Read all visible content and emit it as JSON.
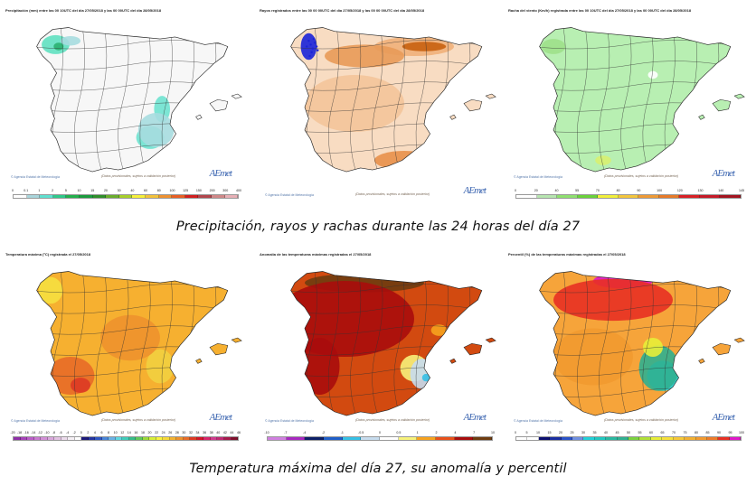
{
  "figure": {
    "source_brand": "AEMET",
    "captions": {
      "row1": "Precipitación, rayos y rachas durante las 24 horas del día 27",
      "row2": "Temperatura máxima del día 27, su anomalía y percentil"
    },
    "common": {
      "credit": "© Agencia Estatal de Meteorología",
      "note": "(Datos provisionales, sujetos a validación posterior)",
      "logo": "AEmet",
      "logo_sub": "Agencia Estatal de Meteorología"
    },
    "panels": [
      {
        "id": "precipitation",
        "title": "Precipitación (mm) entre las 00 10UTC del día 27/05/2018 y las 00 00UTC del día 28/05/2018",
        "background": "#f7f7f7",
        "legend": {
          "ticks": [
            "0",
            "0.1",
            "1",
            "2",
            "5",
            "10",
            "15",
            "20",
            "30",
            "40",
            "60",
            "80",
            "100",
            "125",
            "150",
            "200",
            "300",
            "400"
          ],
          "colors": [
            "#ffffff",
            "#a9d6dc",
            "#5fe0d0",
            "#2fc98a",
            "#22b04c",
            "#1a9a3c",
            "#2f8f2a",
            "#6aad2c",
            "#a7cf2a",
            "#f6f03a",
            "#f3c23a",
            "#ef9130",
            "#e85e23",
            "#d21e1e",
            "#b1454c",
            "#cf8888",
            "#e8b0b6"
          ]
        },
        "highlights": [
          {
            "region": "Galicia / Asturias west",
            "color": "#5fe0c0"
          },
          {
            "region": "Valencia / Murcia",
            "color": "#6ee2cf"
          }
        ]
      },
      {
        "id": "lightning",
        "title": "Rayos registrados entre las 00 00 00UTC del día 27/05/2018 y las 00 00 00UTC del día 28/05/2018",
        "background": "#f8dcc2",
        "legend": null,
        "highlights": [
          {
            "region": "Galicia west",
            "color": "#1a22d8"
          },
          {
            "region": "Pyrenees / Cantabria",
            "color": "#c8600e"
          }
        ]
      },
      {
        "id": "wind-gusts",
        "title": "Racha del viento (Km/h) registrada entre las 00 10UTC del día 27/05/2018 y las 00 00UTC del día 28/05/2018",
        "background": "#b8efb2",
        "legend": {
          "ticks": [
            "0",
            "20",
            "40",
            "55",
            "70",
            "80",
            "90",
            "100",
            "120",
            "130",
            "140",
            "145"
          ],
          "colors": [
            "#ffffff",
            "#b7e6b0",
            "#8fe070",
            "#6ad23a",
            "#f2f03a",
            "#f4c63c",
            "#ef9a35",
            "#e77a28",
            "#d81f25",
            "#c51927",
            "#a3141f"
          ]
        },
        "highlights": []
      },
      {
        "id": "max-temperature",
        "title": "Temperatura máxima (ºC) registrada el 27/05/2018",
        "background": "#f6b030",
        "legend": {
          "ticks": [
            "-20",
            "-18",
            "-16",
            "-14",
            "-12",
            "-10",
            "-8",
            "-6",
            "-4",
            "-2",
            "0",
            "2",
            "4",
            "6",
            "8",
            "10",
            "12",
            "14",
            "16",
            "18",
            "20",
            "22",
            "24",
            "26",
            "28",
            "30",
            "32",
            "34",
            "36",
            "38",
            "40",
            "42",
            "44",
            "46"
          ],
          "colors": [
            "#8f2fa8",
            "#a642b8",
            "#bb5ec8",
            "#c97ad0",
            "#d290d6",
            "#d9a8dc",
            "#e2c2e2",
            "#ecdcec",
            "#f5f0f5",
            "#ffffff",
            "#1d1a7a",
            "#2535a0",
            "#2f56c2",
            "#4a86d8",
            "#6ab2e4",
            "#5ed7e0",
            "#40ccb8",
            "#38bc88",
            "#5fc85a",
            "#9cd93a",
            "#d8ee38",
            "#f9f23d",
            "#f6d838",
            "#f2b232",
            "#ee922e",
            "#e86c28",
            "#dd3a24",
            "#d3152a",
            "#d8256a",
            "#d03a8e",
            "#c02a72",
            "#a51a4a",
            "#7e0e2a"
          ]
        },
        "highlights": []
      },
      {
        "id": "anomaly",
        "title": "Anomalía de las temperaturas máximas registradas el 27/05/2018",
        "background": "#d24a10",
        "legend": {
          "ticks": [
            "-10",
            "-7",
            "-4",
            "-2",
            "-1",
            "-0.5",
            "0",
            "0.5",
            "1",
            "2",
            "4",
            "7",
            "10"
          ],
          "colors": [
            "#d07fe0",
            "#a828c0",
            "#0c1f66",
            "#1f5ec8",
            "#36c0e6",
            "#c7dcee",
            "#ffffff",
            "#f7f27a",
            "#f6a21e",
            "#e8501a",
            "#a80c0c",
            "#6e3c10"
          ]
        },
        "highlights": []
      },
      {
        "id": "percentile",
        "title": "Percentil (%) de las temperaturas máximas registradas el 27/05/2018",
        "background": "#f6a43a",
        "legend": {
          "ticks": [
            "0",
            "5",
            "10",
            "15",
            "20",
            "25",
            "30",
            "35",
            "40",
            "45",
            "50",
            "55",
            "60",
            "65",
            "70",
            "75",
            "80",
            "85",
            "90",
            "95",
            "100"
          ],
          "colors": [
            "#ffffff",
            "#ffffff",
            "#0c1070",
            "#1a2ea0",
            "#2a52c8",
            "#6f8fe0",
            "#23d0d8",
            "#22c8c0",
            "#2ab8a0",
            "#30b090",
            "#7bd240",
            "#b0e038",
            "#e8ee38",
            "#f6e03a",
            "#f6c838",
            "#f2b032",
            "#f29a30",
            "#ee7c2a",
            "#e83024",
            "#e018c8"
          ]
        },
        "highlights": []
      }
    ]
  }
}
